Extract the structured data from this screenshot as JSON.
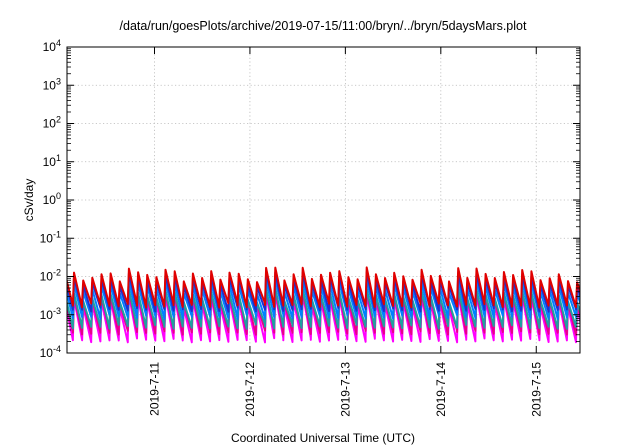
{
  "chart_data": {
    "type": "line",
    "title": "/data/run/goesPlots/archive/2019-07-15/11:00/bryn/../bryn/5daysMars.plot",
    "xlabel": "Coordinated Universal Time (UTC)",
    "ylabel": "cSv/day",
    "x_range": [
      "2019-07-10 02:00",
      "2019-07-15 11:00"
    ],
    "x_ticks": [
      "2019-7-11",
      "2019-7-12",
      "2019-7-13",
      "2019-7-14",
      "2019-7-15"
    ],
    "yscale": "log",
    "ylim": [
      0.0001,
      10000
    ],
    "y_ticks": [
      {
        "base": "10",
        "exp": "-4"
      },
      {
        "base": "10",
        "exp": "-3"
      },
      {
        "base": "10",
        "exp": "-2"
      },
      {
        "base": "10",
        "exp": "-1"
      },
      {
        "base": "10",
        "exp": "0"
      },
      {
        "base": "10",
        "exp": "1"
      },
      {
        "base": "10",
        "exp": "2"
      },
      {
        "base": "10",
        "exp": "3"
      },
      {
        "base": "10",
        "exp": "4"
      }
    ],
    "grid": true,
    "legend": "none",
    "sawtooth_period_hours": 2.3,
    "series": [
      {
        "color": "#ff00ff",
        "peak": 0.0025,
        "trough": 0.00022
      },
      {
        "color": "#e8008a",
        "peak": 0.0032,
        "trough": 0.00035
      },
      {
        "color": "#20a0a0",
        "peak": 0.0035,
        "trough": 0.0005
      },
      {
        "color": "#0080ff",
        "peak": 0.006,
        "trough": 0.0009
      },
      {
        "color": "#1e2fd0",
        "peak": 0.009,
        "trough": 0.0014
      },
      {
        "color": "#e00000",
        "peak": 0.012,
        "trough": 0.0018
      }
    ]
  }
}
